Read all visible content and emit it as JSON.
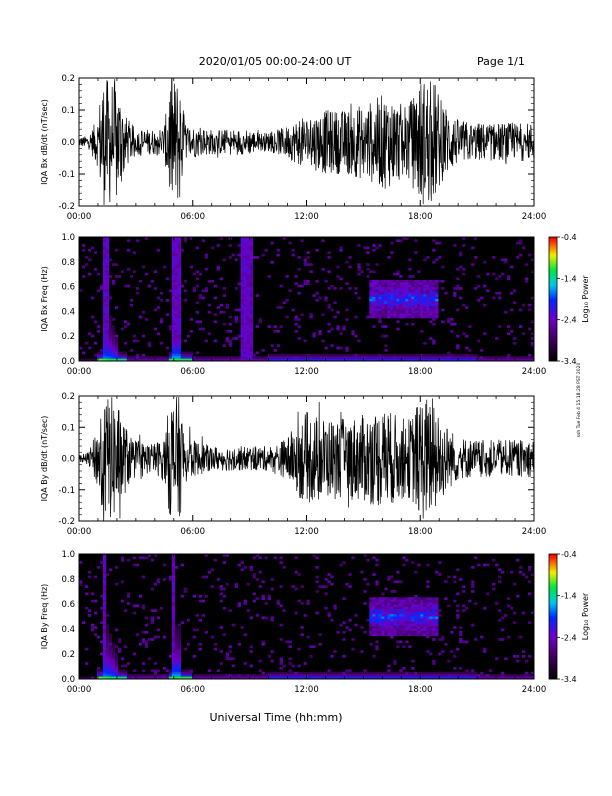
{
  "header": {
    "title": "2020/01/05  00:00-24:00 UT",
    "page": "Page 1/1"
  },
  "footer": {
    "xlabel": "Universal Time (hh:mm)"
  },
  "side_note": "ssh Tue Feb 4 15:18:28 PST 2020",
  "colorbar": {
    "label": "Log₁₀ Power",
    "ticks": [
      "-0.4",
      "-1.4",
      "-2.4",
      "-3.4"
    ],
    "range": [
      -3.4,
      -0.4
    ]
  },
  "chart_data": [
    {
      "type": "line",
      "id": "bx_waveform",
      "ylabel": "IQA Bx dB/dt (nT/sec)",
      "ylim": [
        -0.2,
        0.2
      ],
      "yticks": [
        "0.2",
        "0.1",
        "0.0",
        "-0.1",
        "-0.2"
      ],
      "xticks": [
        "00:00",
        "06:00",
        "12:00",
        "18:00",
        "24:00"
      ],
      "xlim": [
        0,
        24
      ],
      "series": [
        {
          "x": [
            0,
            0.5,
            1,
            1.2,
            1.5,
            2,
            2.5,
            3,
            3.5,
            4,
            4.5,
            4.8,
            5,
            5.3,
            5.6,
            6,
            7,
            8,
            9,
            9.5,
            10,
            10.5,
            11,
            11.5,
            12,
            13,
            14,
            15,
            15.5,
            16,
            16.5,
            17,
            17.5,
            18,
            18.3,
            18.7,
            19,
            19.5,
            20,
            21,
            22,
            23,
            24
          ],
          "y_amp": [
            0.015,
            0.02,
            0.08,
            0.2,
            0.2,
            0.2,
            0.08,
            0.04,
            0.04,
            0.04,
            0.05,
            0.2,
            0.2,
            0.2,
            0.06,
            0.05,
            0.04,
            0.04,
            0.04,
            0.03,
            0.03,
            0.04,
            0.05,
            0.07,
            0.08,
            0.1,
            0.1,
            0.12,
            0.13,
            0.15,
            0.14,
            0.12,
            0.13,
            0.2,
            0.2,
            0.2,
            0.15,
            0.1,
            0.07,
            0.06,
            0.06,
            0.06,
            0.06
          ]
        }
      ]
    },
    {
      "type": "heatmap",
      "id": "bx_spectrogram",
      "ylabel": "IQA Bx Freq (Hz)",
      "ylim": [
        0.0,
        1.0
      ],
      "yticks": [
        "1.0",
        "0.8",
        "0.6",
        "0.4",
        "0.2",
        "0.0"
      ],
      "xticks": [
        "00:00",
        "06:00",
        "12:00",
        "18:00",
        "24:00"
      ],
      "xlim": [
        0,
        24
      ],
      "broadband_bursts_hours": [
        [
          1.2,
          1.6
        ],
        [
          4.9,
          5.3
        ],
        [
          8.6,
          9.1
        ]
      ]
    },
    {
      "type": "line",
      "id": "by_waveform",
      "ylabel": "IQA By dB/dt (nT/sec)",
      "ylim": [
        -0.2,
        0.2
      ],
      "yticks": [
        "0.2",
        "0.1",
        "0.0",
        "-0.1",
        "-0.2"
      ],
      "xticks": [
        "00:00",
        "06:00",
        "12:00",
        "18:00",
        "24:00"
      ],
      "xlim": [
        0,
        24
      ],
      "series": [
        {
          "x": [
            0,
            0.5,
            1,
            1.2,
            1.5,
            2,
            2.5,
            3,
            3.5,
            4,
            4.5,
            4.8,
            5,
            5.3,
            5.6,
            6,
            7,
            8,
            9,
            9.5,
            10,
            10.5,
            11,
            11.5,
            12,
            13,
            14,
            15,
            15.5,
            16,
            16.5,
            17,
            17.5,
            18,
            18.3,
            18.7,
            19,
            19.5,
            20,
            21,
            22,
            23,
            24
          ],
          "y_amp": [
            0.01,
            0.02,
            0.1,
            0.2,
            0.2,
            0.2,
            0.1,
            0.06,
            0.05,
            0.05,
            0.07,
            0.2,
            0.2,
            0.2,
            0.08,
            0.06,
            0.04,
            0.04,
            0.04,
            0.04,
            0.04,
            0.05,
            0.07,
            0.12,
            0.15,
            0.13,
            0.13,
            0.14,
            0.15,
            0.16,
            0.15,
            0.13,
            0.13,
            0.2,
            0.2,
            0.2,
            0.15,
            0.1,
            0.07,
            0.06,
            0.06,
            0.06,
            0.06
          ]
        }
      ]
    },
    {
      "type": "heatmap",
      "id": "by_spectrogram",
      "ylabel": "IQA By Freq (Hz)",
      "ylim": [
        0.0,
        1.0
      ],
      "yticks": [
        "1.0",
        "0.8",
        "0.6",
        "0.4",
        "0.2",
        "0.0"
      ],
      "xticks": [
        "00:00",
        "06:00",
        "12:00",
        "18:00",
        "24:00"
      ],
      "xlim": [
        0,
        24
      ],
      "broadband_bursts_hours": [
        [
          1.2,
          1.4
        ],
        [
          4.9,
          5.1
        ]
      ]
    }
  ]
}
